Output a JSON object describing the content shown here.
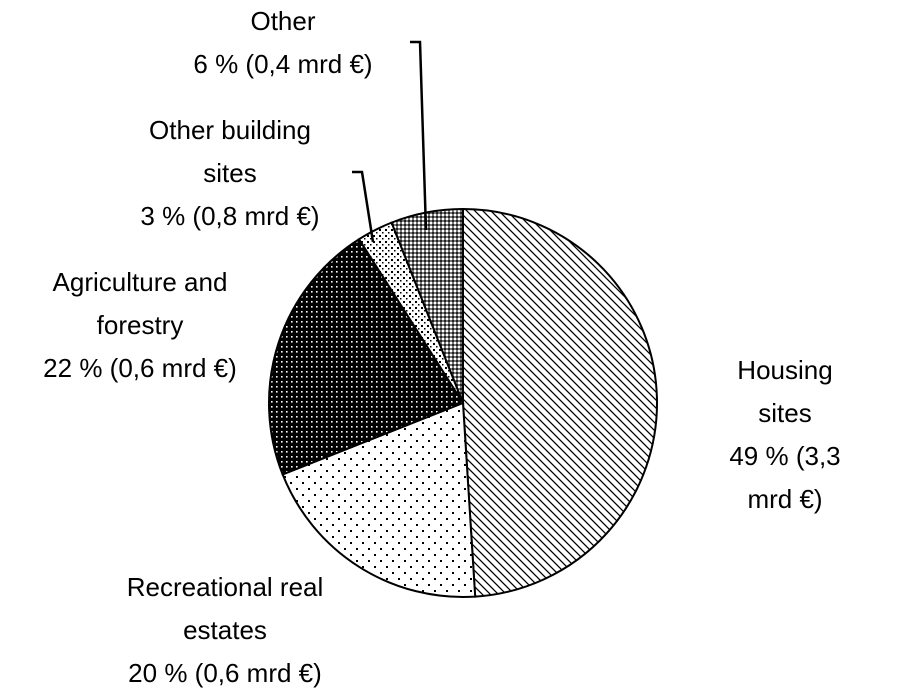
{
  "chart_data": {
    "type": "pie",
    "categories": [
      "Housing sites",
      "Recreational real estates",
      "Agriculture and forestry",
      "Other building sites",
      "Other"
    ],
    "values": [
      49,
      20,
      22,
      3,
      6
    ],
    "value_labels": [
      "49 % (3,3 mrd €)",
      "20 % (0,6 mrd €)",
      "22 % (0,6 mrd €)",
      "3 % (0,8 mrd €)",
      "6 % (0,4 mrd €)"
    ]
  }
}
